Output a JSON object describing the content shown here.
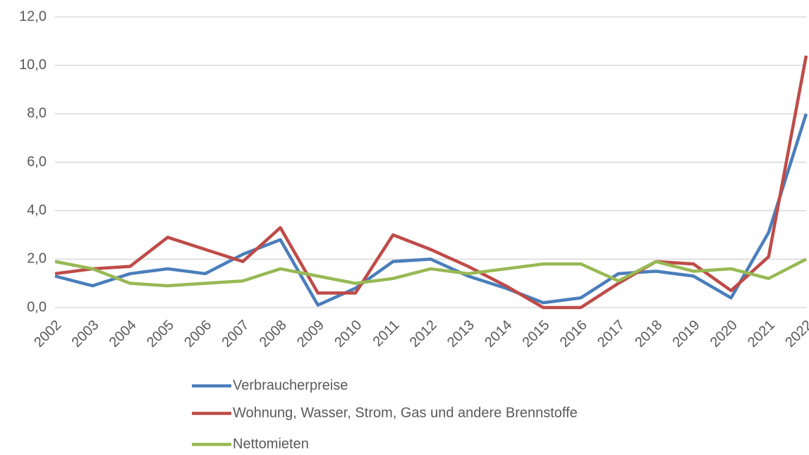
{
  "chart_data": {
    "type": "line",
    "categories": [
      "2002",
      "2003",
      "2004",
      "2005",
      "2006",
      "2007",
      "2008",
      "2009",
      "2010",
      "2011",
      "2012",
      "2013",
      "2014",
      "2015",
      "2016",
      "2017",
      "2018",
      "2019",
      "2020",
      "2021",
      "2022"
    ],
    "series": [
      {
        "name": "Verbraucherpreise",
        "color": "#4a7ebb",
        "values": [
          1.3,
          0.9,
          1.4,
          1.6,
          1.4,
          2.2,
          2.8,
          0.1,
          0.8,
          1.9,
          2.0,
          1.3,
          0.8,
          0.2,
          0.4,
          1.4,
          1.5,
          1.3,
          0.4,
          3.1,
          8.0
        ]
      },
      {
        "name": "Wohnung, Wasser, Strom, Gas und andere Brennstoffe",
        "color": "#be4b48",
        "values": [
          1.4,
          1.6,
          1.7,
          2.9,
          2.4,
          1.9,
          3.3,
          0.6,
          0.6,
          3.0,
          2.4,
          1.7,
          0.9,
          0.0,
          0.0,
          1.0,
          1.9,
          1.8,
          0.7,
          2.1,
          10.4
        ]
      },
      {
        "name": "Nettomieten",
        "color": "#98b954",
        "values": [
          1.9,
          1.6,
          1.0,
          0.9,
          1.0,
          1.1,
          1.6,
          1.3,
          1.0,
          1.2,
          1.6,
          1.4,
          1.6,
          1.8,
          1.8,
          1.1,
          1.9,
          1.5,
          1.6,
          1.2,
          2.0
        ]
      }
    ],
    "ylim": [
      0,
      12
    ],
    "yticks": [
      {
        "value": 0,
        "label": "0,0"
      },
      {
        "value": 2,
        "label": "2,0"
      },
      {
        "value": 4,
        "label": "4,0"
      },
      {
        "value": 6,
        "label": "6,0"
      },
      {
        "value": 8,
        "label": "8,0"
      },
      {
        "value": 10,
        "label": "10,0"
      },
      {
        "value": 12,
        "label": "12,0"
      }
    ],
    "grid": true
  }
}
